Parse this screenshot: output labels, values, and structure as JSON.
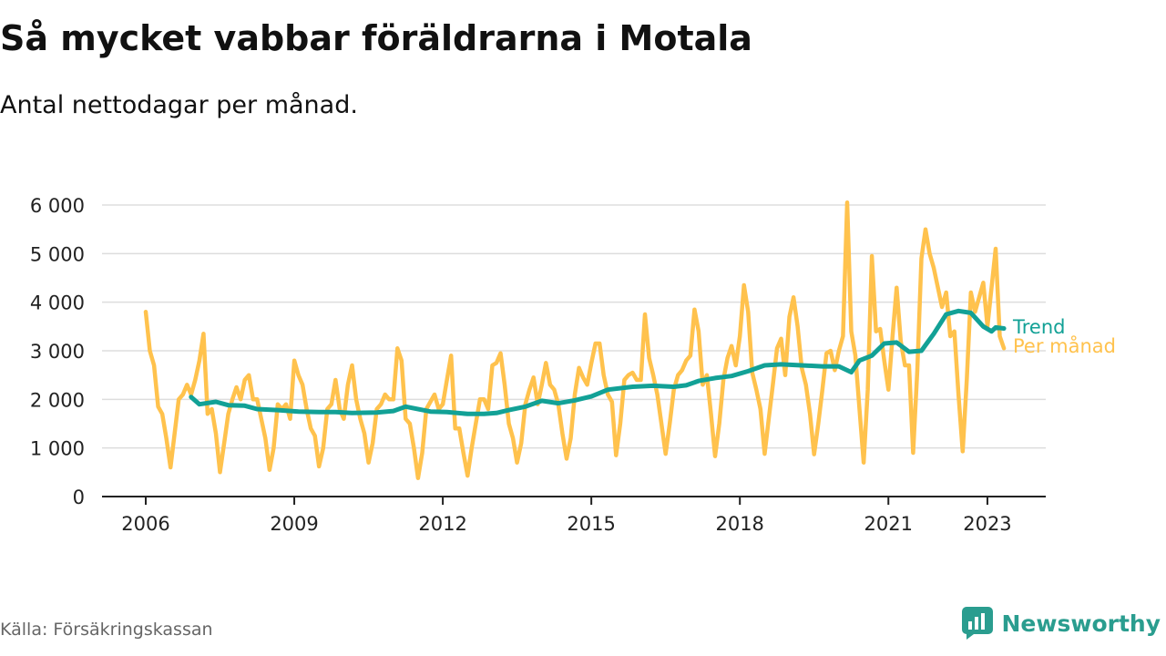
{
  "title": "Så mycket vabbar föräldrarna i Motala",
  "subtitle": "Antal nettodagar per månad.",
  "source": "Källa: Försäkringskassan",
  "brand": {
    "name": "Newsworthy",
    "color": "#2a9d8f",
    "icon": "bar-chart-logo-icon"
  },
  "colors": {
    "monthly": "#ffc24d",
    "trend": "#12a196",
    "grid": "#dddddd",
    "axis": "#222222"
  },
  "chart_data": {
    "type": "line",
    "ylim": [
      0,
      6000
    ],
    "yticks": [
      0,
      1000,
      2000,
      3000,
      4000,
      5000,
      6000
    ],
    "ytick_labels": [
      "0",
      "1 000",
      "2 000",
      "3 000",
      "4 000",
      "5 000",
      "6 000"
    ],
    "xticks": [
      2006,
      2009,
      2012,
      2015,
      2018,
      2021,
      2023
    ],
    "xtick_labels": [
      "2006",
      "2009",
      "2012",
      "2015",
      "2018",
      "2021",
      "2023"
    ],
    "grid": true,
    "series": [
      {
        "name": "Per månad",
        "color": "#ffc24d",
        "points": [
          [
            "2006-01",
            3800
          ],
          [
            "2006-02",
            3000
          ],
          [
            "2006-03",
            2700
          ],
          [
            "2006-04",
            1850
          ],
          [
            "2006-05",
            1700
          ],
          [
            "2006-06",
            1200
          ],
          [
            "2006-07",
            600
          ],
          [
            "2006-08",
            1300
          ],
          [
            "2006-09",
            2000
          ],
          [
            "2006-10",
            2100
          ],
          [
            "2006-11",
            2300
          ],
          [
            "2006-12",
            2100
          ],
          [
            "2007-01",
            2400
          ],
          [
            "2007-02",
            2800
          ],
          [
            "2007-03",
            3350
          ],
          [
            "2007-04",
            1700
          ],
          [
            "2007-05",
            1800
          ],
          [
            "2007-06",
            1300
          ],
          [
            "2007-07",
            500
          ],
          [
            "2007-08",
            1100
          ],
          [
            "2007-09",
            1700
          ],
          [
            "2007-10",
            2000
          ],
          [
            "2007-11",
            2250
          ],
          [
            "2007-12",
            2000
          ],
          [
            "2008-01",
            2400
          ],
          [
            "2008-02",
            2500
          ],
          [
            "2008-03",
            2000
          ],
          [
            "2008-04",
            2000
          ],
          [
            "2008-05",
            1600
          ],
          [
            "2008-06",
            1200
          ],
          [
            "2008-07",
            550
          ],
          [
            "2008-08",
            1000
          ],
          [
            "2008-09",
            1900
          ],
          [
            "2008-10",
            1800
          ],
          [
            "2008-11",
            1900
          ],
          [
            "2008-12",
            1600
          ],
          [
            "2009-01",
            2800
          ],
          [
            "2009-02",
            2500
          ],
          [
            "2009-03",
            2300
          ],
          [
            "2009-04",
            1800
          ],
          [
            "2009-05",
            1400
          ],
          [
            "2009-06",
            1250
          ],
          [
            "2009-07",
            620
          ],
          [
            "2009-08",
            1000
          ],
          [
            "2009-09",
            1800
          ],
          [
            "2009-10",
            1900
          ],
          [
            "2009-11",
            2400
          ],
          [
            "2009-12",
            1800
          ],
          [
            "2010-01",
            1600
          ],
          [
            "2010-02",
            2300
          ],
          [
            "2010-03",
            2700
          ],
          [
            "2010-04",
            2000
          ],
          [
            "2010-05",
            1600
          ],
          [
            "2010-06",
            1300
          ],
          [
            "2010-07",
            700
          ],
          [
            "2010-08",
            1100
          ],
          [
            "2010-09",
            1800
          ],
          [
            "2010-10",
            1900
          ],
          [
            "2010-11",
            2100
          ],
          [
            "2010-12",
            2000
          ],
          [
            "2011-01",
            2000
          ],
          [
            "2011-02",
            3050
          ],
          [
            "2011-03",
            2800
          ],
          [
            "2011-04",
            1600
          ],
          [
            "2011-05",
            1500
          ],
          [
            "2011-06",
            1000
          ],
          [
            "2011-07",
            380
          ],
          [
            "2011-08",
            900
          ],
          [
            "2011-09",
            1800
          ],
          [
            "2011-10",
            1950
          ],
          [
            "2011-11",
            2100
          ],
          [
            "2011-12",
            1800
          ],
          [
            "2012-01",
            1900
          ],
          [
            "2012-02",
            2400
          ],
          [
            "2012-03",
            2900
          ],
          [
            "2012-04",
            1400
          ],
          [
            "2012-05",
            1400
          ],
          [
            "2012-06",
            900
          ],
          [
            "2012-07",
            430
          ],
          [
            "2012-08",
            1000
          ],
          [
            "2012-09",
            1500
          ],
          [
            "2012-10",
            2000
          ],
          [
            "2012-11",
            2000
          ],
          [
            "2012-12",
            1800
          ],
          [
            "2013-01",
            2700
          ],
          [
            "2013-02",
            2750
          ],
          [
            "2013-03",
            2950
          ],
          [
            "2013-04",
            2300
          ],
          [
            "2013-05",
            1500
          ],
          [
            "2013-06",
            1200
          ],
          [
            "2013-07",
            700
          ],
          [
            "2013-08",
            1100
          ],
          [
            "2013-09",
            1900
          ],
          [
            "2013-10",
            2200
          ],
          [
            "2013-11",
            2450
          ],
          [
            "2013-12",
            1900
          ],
          [
            "2014-01",
            2300
          ],
          [
            "2014-02",
            2750
          ],
          [
            "2014-03",
            2300
          ],
          [
            "2014-04",
            2200
          ],
          [
            "2014-05",
            1900
          ],
          [
            "2014-06",
            1300
          ],
          [
            "2014-07",
            780
          ],
          [
            "2014-08",
            1200
          ],
          [
            "2014-09",
            2100
          ],
          [
            "2014-10",
            2650
          ],
          [
            "2014-11",
            2450
          ],
          [
            "2014-12",
            2300
          ],
          [
            "2015-01",
            2750
          ],
          [
            "2015-02",
            3150
          ],
          [
            "2015-03",
            3150
          ],
          [
            "2015-04",
            2500
          ],
          [
            "2015-05",
            2100
          ],
          [
            "2015-06",
            1950
          ],
          [
            "2015-07",
            850
          ],
          [
            "2015-08",
            1500
          ],
          [
            "2015-09",
            2400
          ],
          [
            "2015-10",
            2500
          ],
          [
            "2015-11",
            2550
          ],
          [
            "2015-12",
            2400
          ],
          [
            "2016-01",
            2400
          ],
          [
            "2016-02",
            3750
          ],
          [
            "2016-03",
            2850
          ],
          [
            "2016-04",
            2500
          ],
          [
            "2016-05",
            2100
          ],
          [
            "2016-06",
            1500
          ],
          [
            "2016-07",
            880
          ],
          [
            "2016-08",
            1500
          ],
          [
            "2016-09",
            2200
          ],
          [
            "2016-10",
            2500
          ],
          [
            "2016-11",
            2600
          ],
          [
            "2016-12",
            2800
          ],
          [
            "2017-01",
            2900
          ],
          [
            "2017-02",
            3850
          ],
          [
            "2017-03",
            3400
          ],
          [
            "2017-04",
            2300
          ],
          [
            "2017-05",
            2500
          ],
          [
            "2017-06",
            1700
          ],
          [
            "2017-07",
            830
          ],
          [
            "2017-08",
            1500
          ],
          [
            "2017-09",
            2400
          ],
          [
            "2017-10",
            2850
          ],
          [
            "2017-11",
            3100
          ],
          [
            "2017-12",
            2700
          ],
          [
            "2018-01",
            3300
          ],
          [
            "2018-02",
            4350
          ],
          [
            "2018-03",
            3800
          ],
          [
            "2018-04",
            2550
          ],
          [
            "2018-05",
            2200
          ],
          [
            "2018-06",
            1800
          ],
          [
            "2018-07",
            880
          ],
          [
            "2018-08",
            1600
          ],
          [
            "2018-09",
            2300
          ],
          [
            "2018-10",
            3050
          ],
          [
            "2018-11",
            3250
          ],
          [
            "2018-12",
            2500
          ],
          [
            "2019-01",
            3700
          ],
          [
            "2019-02",
            4100
          ],
          [
            "2019-03",
            3500
          ],
          [
            "2019-04",
            2650
          ],
          [
            "2019-05",
            2300
          ],
          [
            "2019-06",
            1700
          ],
          [
            "2019-07",
            870
          ],
          [
            "2019-08",
            1500
          ],
          [
            "2019-09",
            2200
          ],
          [
            "2019-10",
            2950
          ],
          [
            "2019-11",
            3000
          ],
          [
            "2019-12",
            2600
          ],
          [
            "2020-01",
            3000
          ],
          [
            "2020-02",
            3300
          ],
          [
            "2020-03",
            6050
          ],
          [
            "2020-04",
            3400
          ],
          [
            "2020-05",
            2900
          ],
          [
            "2020-06",
            1800
          ],
          [
            "2020-07",
            700
          ],
          [
            "2020-08",
            2200
          ],
          [
            "2020-09",
            4950
          ],
          [
            "2020-10",
            3400
          ],
          [
            "2020-11",
            3450
          ],
          [
            "2020-12",
            2800
          ],
          [
            "2021-01",
            2200
          ],
          [
            "2021-02",
            3300
          ],
          [
            "2021-03",
            4300
          ],
          [
            "2021-04",
            3200
          ],
          [
            "2021-05",
            2700
          ],
          [
            "2021-06",
            2700
          ],
          [
            "2021-07",
            900
          ],
          [
            "2021-08",
            2600
          ],
          [
            "2021-09",
            4900
          ],
          [
            "2021-10",
            5500
          ],
          [
            "2021-11",
            5000
          ],
          [
            "2021-12",
            4700
          ],
          [
            "2022-01",
            4300
          ],
          [
            "2022-02",
            3900
          ],
          [
            "2022-03",
            4200
          ],
          [
            "2022-04",
            3300
          ],
          [
            "2022-05",
            3400
          ],
          [
            "2022-06",
            2100
          ],
          [
            "2022-07",
            930
          ],
          [
            "2022-08",
            2400
          ],
          [
            "2022-09",
            4200
          ],
          [
            "2022-10",
            3800
          ],
          [
            "2022-11",
            4100
          ],
          [
            "2022-12",
            4400
          ],
          [
            "2023-01",
            3500
          ],
          [
            "2023-02",
            4300
          ],
          [
            "2023-03",
            5100
          ],
          [
            "2023-04",
            3300
          ],
          [
            "2023-05",
            3050
          ]
        ]
      },
      {
        "name": "Trend",
        "color": "#12a196",
        "points": [
          [
            "2006-12",
            2050
          ],
          [
            "2007-02",
            1900
          ],
          [
            "2007-06",
            1950
          ],
          [
            "2007-09",
            1880
          ],
          [
            "2008-01",
            1870
          ],
          [
            "2008-04",
            1800
          ],
          [
            "2008-09",
            1780
          ],
          [
            "2009-02",
            1750
          ],
          [
            "2009-07",
            1740
          ],
          [
            "2009-11",
            1740
          ],
          [
            "2010-03",
            1720
          ],
          [
            "2010-09",
            1730
          ],
          [
            "2011-01",
            1760
          ],
          [
            "2011-04",
            1850
          ],
          [
            "2011-10",
            1750
          ],
          [
            "2012-02",
            1740
          ],
          [
            "2012-07",
            1700
          ],
          [
            "2012-11",
            1700
          ],
          [
            "2013-02",
            1720
          ],
          [
            "2013-05",
            1780
          ],
          [
            "2013-09",
            1850
          ],
          [
            "2014-01",
            1970
          ],
          [
            "2014-05",
            1920
          ],
          [
            "2014-09",
            1980
          ],
          [
            "2015-01",
            2060
          ],
          [
            "2015-05",
            2200
          ],
          [
            "2015-11",
            2260
          ],
          [
            "2016-04",
            2280
          ],
          [
            "2016-09",
            2260
          ],
          [
            "2016-12",
            2290
          ],
          [
            "2017-03",
            2380
          ],
          [
            "2017-07",
            2440
          ],
          [
            "2017-11",
            2480
          ],
          [
            "2018-03",
            2580
          ],
          [
            "2018-07",
            2700
          ],
          [
            "2018-11",
            2720
          ],
          [
            "2019-04",
            2700
          ],
          [
            "2019-09",
            2680
          ],
          [
            "2020-01",
            2680
          ],
          [
            "2020-04",
            2560
          ],
          [
            "2020-06",
            2800
          ],
          [
            "2020-09",
            2900
          ],
          [
            "2020-12",
            3150
          ],
          [
            "2021-03",
            3170
          ],
          [
            "2021-06",
            2980
          ],
          [
            "2021-09",
            3000
          ],
          [
            "2021-12",
            3350
          ],
          [
            "2022-03",
            3750
          ],
          [
            "2022-06",
            3820
          ],
          [
            "2022-09",
            3780
          ],
          [
            "2022-12",
            3500
          ],
          [
            "2023-02",
            3400
          ],
          [
            "2023-03",
            3480
          ],
          [
            "2023-05",
            3460
          ]
        ]
      }
    ]
  }
}
